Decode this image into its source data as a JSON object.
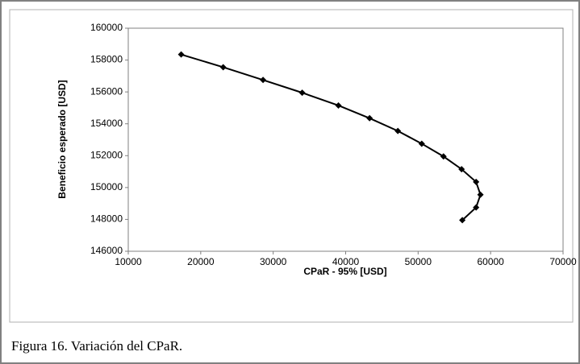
{
  "chart_data": {
    "type": "line",
    "xlabel": "CPaR - 95% [USD]",
    "ylabel": "Beneficio esperado [USD]",
    "series": [
      {
        "color": "#000000",
        "x": [
          17300,
          23100,
          28600,
          34000,
          39000,
          43300,
          47200,
          50500,
          53500,
          56000,
          58000,
          58600,
          58000,
          56100
        ],
        "values": [
          158350,
          157550,
          156750,
          155950,
          155150,
          154350,
          153550,
          152750,
          151950,
          151150,
          150350,
          149550,
          148750,
          147950
        ]
      }
    ],
    "xlim": [
      10000,
      70000
    ],
    "xticks": [
      10000,
      20000,
      30000,
      40000,
      50000,
      60000,
      70000
    ],
    "ylim": [
      146000,
      160000
    ],
    "yticks": [
      146000,
      148000,
      150000,
      152000,
      154000,
      156000,
      158000,
      160000
    ]
  },
  "caption": "Figura 16. Variación del CPaR."
}
